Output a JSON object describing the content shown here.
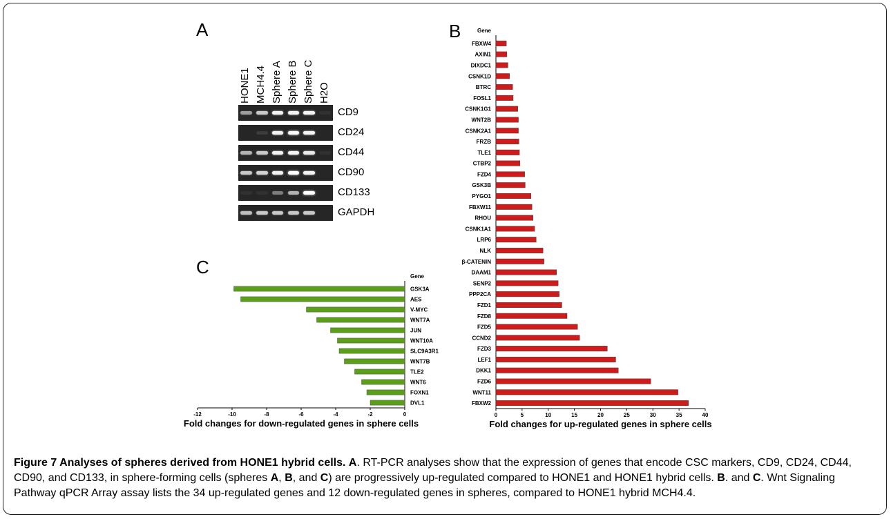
{
  "figure": {
    "panel_a_letter": "A",
    "panel_b_letter": "B",
    "panel_c_letter": "C",
    "lanes": [
      "HONE1",
      "MCH4.4",
      "Sphere A",
      "Sphere B",
      "Sphere C",
      "H2O"
    ],
    "gel_rows": [
      {
        "label": "CD9",
        "intensities": [
          0.55,
          0.75,
          0.95,
          0.95,
          0.95,
          0.05
        ]
      },
      {
        "label": "CD24",
        "intensities": [
          0.0,
          0.1,
          0.95,
          1.0,
          0.95,
          0.0
        ]
      },
      {
        "label": "CD44",
        "intensities": [
          0.65,
          0.75,
          0.95,
          0.95,
          0.9,
          0.05
        ]
      },
      {
        "label": "CD90",
        "intensities": [
          0.75,
          0.8,
          0.95,
          1.0,
          0.95,
          0.0
        ]
      },
      {
        "label": "CD133",
        "intensities": [
          0.05,
          0.05,
          0.4,
          0.65,
          1.0,
          0.0
        ]
      },
      {
        "label": "GAPDH",
        "intensities": [
          0.7,
          0.75,
          0.75,
          0.75,
          0.75,
          0.0
        ]
      }
    ]
  },
  "chart_data": [
    {
      "type": "bar",
      "orientation": "horizontal",
      "panel": "B",
      "title": "",
      "category_header": "Gene",
      "xlabel": "Fold changes for up-regulated genes in sphere cells",
      "xlim": [
        0,
        40
      ],
      "xticks": [
        0,
        5,
        10,
        15,
        20,
        25,
        30,
        35,
        40
      ],
      "color": "#cc1c1c",
      "categories": [
        "FBXW4",
        "AXIN1",
        "DIXDC1",
        "CSNK1D",
        "BTRC",
        "FOSL1",
        "CSNK1G1",
        "WNT2B",
        "CSNK2A1",
        "FRZB",
        "TLE1",
        "CTBP2",
        "FZD4",
        "GSK3B",
        "PYGO1",
        "FBXW11",
        "RHOU",
        "CSNK1A1",
        "LRP6",
        "NLK",
        "β-CATENIN",
        "DAAM1",
        "SENP2",
        "PPP2CA",
        "FZD1",
        "FZD8",
        "FZD5",
        "CCND2",
        "FZD3",
        "LEF1",
        "DKK1",
        "FZD6",
        "WNT11",
        "FBXW2"
      ],
      "values": [
        2.0,
        2.1,
        2.3,
        2.6,
        3.2,
        3.3,
        4.2,
        4.3,
        4.3,
        4.4,
        4.5,
        4.6,
        5.5,
        5.6,
        6.7,
        6.9,
        7.1,
        7.4,
        7.7,
        9.0,
        9.2,
        11.6,
        11.9,
        12.1,
        12.6,
        13.6,
        15.6,
        16.0,
        21.3,
        22.9,
        23.4,
        29.6,
        34.8,
        36.8
      ]
    },
    {
      "type": "bar",
      "orientation": "horizontal",
      "panel": "C",
      "title": "",
      "category_header": "Gene",
      "xlabel": "Fold changes for down-regulated genes in sphere cells",
      "xlim": [
        -12,
        0
      ],
      "xticks": [
        -12,
        -10,
        -8,
        -6,
        -4,
        -2,
        0
      ],
      "color": "#5a9e1a",
      "categories": [
        "GSK3A",
        "AES",
        "V-MYC",
        "WNT7A",
        "JUN",
        "WNT10A",
        "SLC9A3R1",
        "WNT7B",
        "TLE2",
        "WNT6",
        "FOXN1",
        "DVL1"
      ],
      "values": [
        -9.9,
        -9.5,
        -5.7,
        -5.1,
        -4.3,
        -3.9,
        -3.8,
        -3.5,
        -2.9,
        -2.5,
        -2.2,
        -2.0
      ]
    }
  ],
  "caption": {
    "title": "Figure 7 Analyses of spheres derived from HONE1 hybrid cells.",
    "a_letter": "A",
    "a_text": ". RT-PCR analyses show that the expression of genes that encode CSC markers, CD9, CD24, CD44, CD90, and CD133, in sphere-forming cells (spheres ",
    "a_s1": "A",
    "a_sep1": ", ",
    "a_s2": "B",
    "a_sep2": ", and ",
    "a_s3": "C",
    "a_text2": ") are progressively up-regulated compared to HONE1 and HONE1 hybrid cells. ",
    "b_letter": "B",
    "b_sep": ". and ",
    "c_letter": "C",
    "c_text": ". Wnt Signaling Pathway qPCR Array assay lists the 34 up-regulated genes and 12 down-regulated genes in spheres, compared to HONE1 hybrid MCH4.4."
  }
}
